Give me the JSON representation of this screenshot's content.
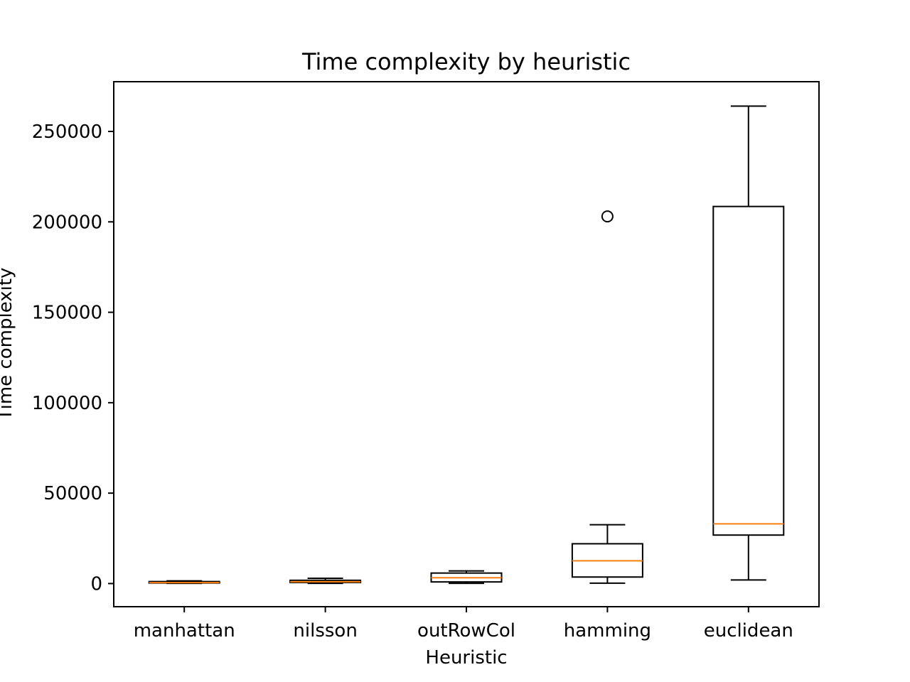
{
  "chart_data": {
    "type": "boxplot",
    "title": "Time complexity by heuristic",
    "xlabel": "Heuristic",
    "ylabel": "Time complexity",
    "ylim": [
      -12800,
      277500
    ],
    "yticks": [
      0,
      50000,
      100000,
      150000,
      200000,
      250000
    ],
    "ytick_labels": [
      "0",
      "50000",
      "100000",
      "150000",
      "200000",
      "250000"
    ],
    "grid": false,
    "colors": {
      "box": "#000000",
      "median": "#ff7f0e",
      "outlier": "#000000"
    },
    "categories": [
      "manhattan",
      "nilsson",
      "outRowCol",
      "hamming",
      "euclidean"
    ],
    "boxes": [
      {
        "label": "manhattan",
        "whisker_low": 100,
        "q1": 300,
        "median": 500,
        "q3": 1100,
        "whisker_high": 1500,
        "outliers": []
      },
      {
        "label": "nilsson",
        "whisker_low": 100,
        "q1": 600,
        "median": 1000,
        "q3": 1800,
        "whisker_high": 2900,
        "outliers": []
      },
      {
        "label": "outRowCol",
        "whisker_low": 100,
        "q1": 900,
        "median": 3200,
        "q3": 5800,
        "whisker_high": 7000,
        "outliers": []
      },
      {
        "label": "hamming",
        "whisker_low": 200,
        "q1": 3600,
        "median": 12600,
        "q3": 22000,
        "whisker_high": 32500,
        "outliers": [
          203000
        ]
      },
      {
        "label": "euclidean",
        "whisker_low": 2000,
        "q1": 26800,
        "median": 33000,
        "q3": 208500,
        "whisker_high": 264000,
        "outliers": []
      }
    ]
  }
}
